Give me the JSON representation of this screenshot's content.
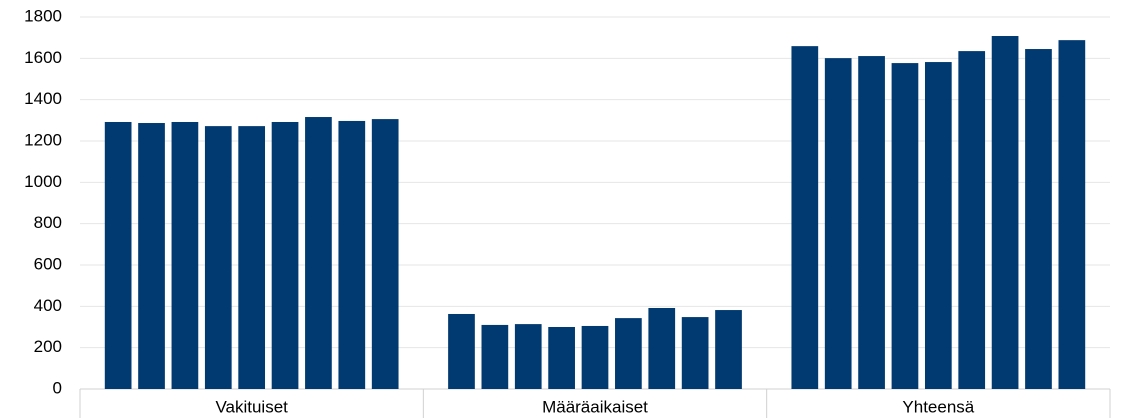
{
  "chart_data": {
    "type": "bar",
    "categories": [
      "Vakituiset",
      "Määräaikaiset",
      "Yhteensä"
    ],
    "series": [
      {
        "color": "#003a70",
        "values": [
          1292,
          363,
          1659
        ]
      },
      {
        "color": "#003a70",
        "values": [
          1287,
          310,
          1601
        ]
      },
      {
        "color": "#003a70",
        "values": [
          1292,
          314,
          1611
        ]
      },
      {
        "color": "#003a70",
        "values": [
          1272,
          300,
          1577
        ]
      },
      {
        "color": "#003a70",
        "values": [
          1272,
          305,
          1582
        ]
      },
      {
        "color": "#003a70",
        "values": [
          1292,
          343,
          1635
        ]
      },
      {
        "color": "#003a70",
        "values": [
          1316,
          392,
          1708
        ]
      },
      {
        "color": "#003a70",
        "values": [
          1297,
          348,
          1645
        ]
      },
      {
        "color": "#003a70",
        "values": [
          1306,
          382,
          1688
        ]
      }
    ],
    "ylim": [
      0,
      1800
    ],
    "yticks": [
      0,
      200,
      400,
      600,
      800,
      1000,
      1200,
      1400,
      1600,
      1800
    ],
    "grid": true
  }
}
